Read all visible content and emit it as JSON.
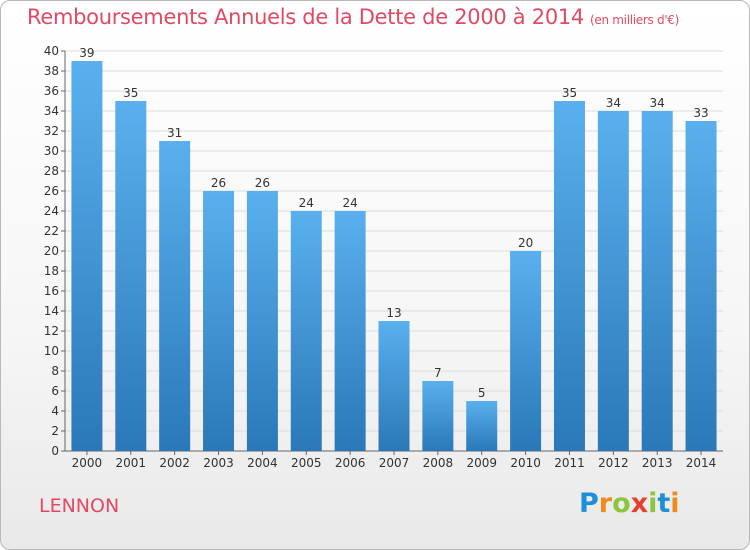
{
  "title": "Remboursements Annuels de la Dette de 2000 à 2014",
  "unit": "(en milliers d'€)",
  "city": "LENNON",
  "logo": {
    "text": "Proxiti",
    "letters": [
      {
        "ch": "P",
        "color": "#1f8fd8"
      },
      {
        "ch": "r",
        "color": "#f08a1c"
      },
      {
        "ch": "o",
        "color": "#8cc63f"
      },
      {
        "ch": "x",
        "color": "#e63f2e"
      },
      {
        "ch": "i",
        "color": "#8cc63f"
      },
      {
        "ch": "t",
        "color": "#1f8fd8"
      },
      {
        "ch": "i",
        "color": "#f08a1c"
      }
    ]
  },
  "colors": {
    "accent": "#e14a63",
    "bar_light": "#5ab0ee",
    "bar_dark": "#2a78b8",
    "grid": "#dcdcdc"
  },
  "chart_data": {
    "type": "bar",
    "title": "Remboursements Annuels de la Dette de 2000 à 2014",
    "xlabel": "",
    "ylabel": "",
    "categories": [
      "2000",
      "2001",
      "2002",
      "2003",
      "2004",
      "2005",
      "2006",
      "2007",
      "2008",
      "2009",
      "2010",
      "2011",
      "2012",
      "2013",
      "2014"
    ],
    "values": [
      39,
      35,
      31,
      26,
      26,
      24,
      24,
      13,
      7,
      5,
      20,
      35,
      34,
      34,
      33
    ],
    "ylim": [
      0,
      40
    ],
    "ytick_step": 2,
    "grid": true
  }
}
